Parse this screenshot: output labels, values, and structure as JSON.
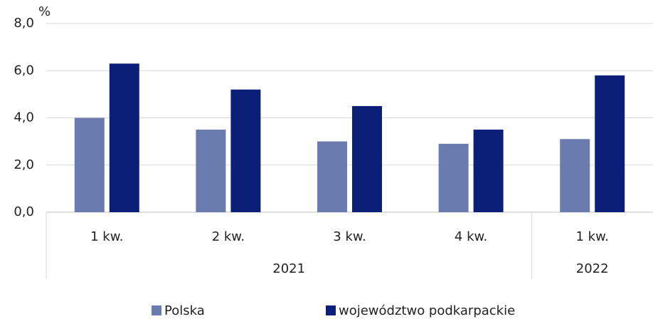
{
  "chart_data": {
    "type": "bar",
    "y_label": "%",
    "categories": [
      "1 kw.",
      "2 kw.",
      "3 kw.",
      "4 kw.",
      "1 kw."
    ],
    "category_groups": [
      {
        "label": "2021",
        "size": 4
      },
      {
        "label": "2022",
        "size": 1
      }
    ],
    "series": [
      {
        "name": "Polska",
        "color": "#6a7bb0",
        "values": [
          4.0,
          3.5,
          3.0,
          2.9,
          3.1
        ]
      },
      {
        "name": "województwo podkarpackie",
        "color": "#0b1f78",
        "values": [
          6.3,
          5.2,
          4.5,
          3.5,
          5.8
        ]
      }
    ],
    "ylim": [
      0,
      8
    ],
    "yticks": [
      {
        "value": 0,
        "label": "0,0"
      },
      {
        "value": 2,
        "label": "2,0"
      },
      {
        "value": 4,
        "label": "4,0"
      },
      {
        "value": 6,
        "label": "6,0"
      },
      {
        "value": 8,
        "label": "8,0"
      }
    ],
    "grid": true
  }
}
